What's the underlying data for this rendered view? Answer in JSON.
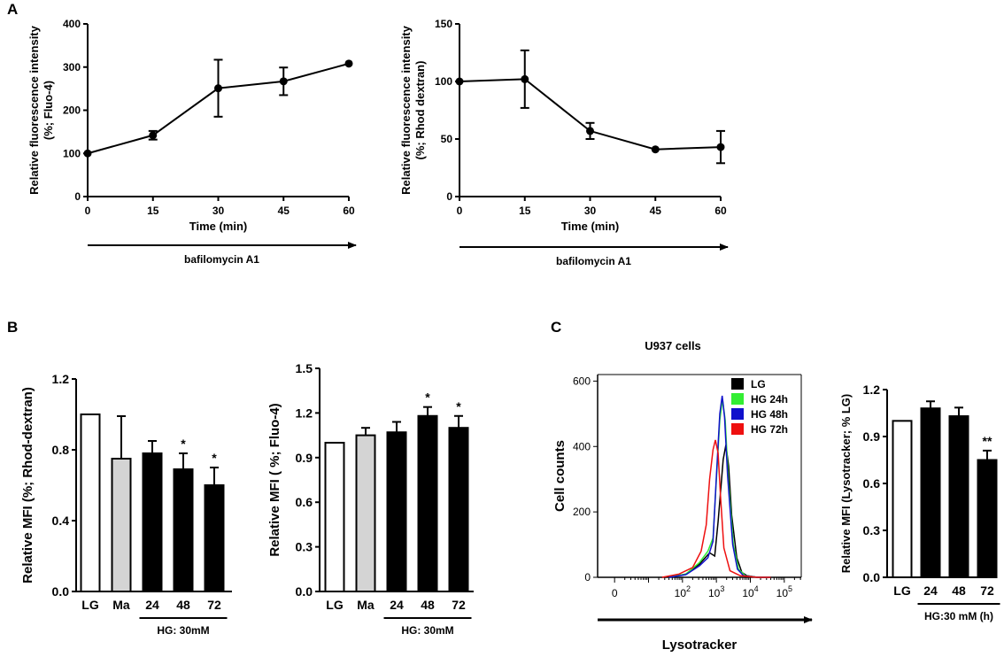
{
  "panels": {
    "a": "A",
    "b": "B",
    "c": "C"
  },
  "chart_data": [
    {
      "id": "A1",
      "type": "line",
      "xlabel": "Time (min)",
      "ylabel_lines": [
        "Relative fluorescence intensity",
        "(%; Fluo-4)"
      ],
      "x": [
        0,
        15,
        30,
        45,
        60
      ],
      "y": [
        100,
        142,
        251,
        267,
        308
      ],
      "err": [
        0,
        10,
        66,
        32,
        0
      ],
      "xticks": [
        "0",
        "15",
        "30",
        "45",
        "60"
      ],
      "yticks": [
        "0",
        "100",
        "200",
        "300",
        "400"
      ],
      "xlim": [
        0,
        60
      ],
      "ylim": [
        0,
        400
      ],
      "arrow_label": "bafilomycin A1"
    },
    {
      "id": "A2",
      "type": "line",
      "xlabel": "Time (min)",
      "ylabel_lines": [
        "Relative fluorescence intensity",
        "(%; Rhod dextran)"
      ],
      "x": [
        0,
        15,
        30,
        45,
        60
      ],
      "y": [
        100,
        102,
        57,
        41,
        43
      ],
      "err": [
        0,
        25,
        7,
        0,
        14
      ],
      "xticks": [
        "0",
        "15",
        "30",
        "45",
        "60"
      ],
      "yticks": [
        "0",
        "50",
        "100",
        "150"
      ],
      "xlim": [
        0,
        60
      ],
      "ylim": [
        0,
        150
      ],
      "arrow_label": "bafilomycin A1"
    },
    {
      "id": "B1",
      "type": "bar",
      "ylabel": "Relative MFI (%; Rhod-dextran)",
      "categories": [
        "LG",
        "Ma",
        "24",
        "48",
        "72"
      ],
      "values": [
        1.0,
        0.75,
        0.78,
        0.69,
        0.6
      ],
      "err": [
        0,
        0.24,
        0.07,
        0.09,
        0.1
      ],
      "sig": [
        "",
        "",
        "",
        "*",
        "*"
      ],
      "fills": [
        "#ffffff",
        "#d4d4d4",
        "#000000",
        "#000000",
        "#000000"
      ],
      "yticks": [
        "0.0",
        "0.4",
        "0.8",
        "1.2"
      ],
      "ylim": [
        0,
        1.2
      ],
      "group_label": "HG: 30mM"
    },
    {
      "id": "B2",
      "type": "bar",
      "ylabel": "Relative MFI ( %; Fluo-4)",
      "categories": [
        "LG",
        "Ma",
        "24",
        "48",
        "72"
      ],
      "values": [
        1.0,
        1.05,
        1.07,
        1.18,
        1.1
      ],
      "err": [
        0,
        0.05,
        0.07,
        0.06,
        0.08
      ],
      "sig": [
        "",
        "",
        "",
        "*",
        "*"
      ],
      "fills": [
        "#ffffff",
        "#d4d4d4",
        "#000000",
        "#000000",
        "#000000"
      ],
      "yticks": [
        "0.0",
        "0.3",
        "0.6",
        "0.9",
        "1.2",
        "1.5"
      ],
      "ylim": [
        0,
        1.5
      ],
      "group_label": "HG: 30mM"
    },
    {
      "id": "C1",
      "type": "area",
      "title": "U937 cells",
      "xlabel": "Lysotracker",
      "ylabel": "Cell counts",
      "log_axis": true,
      "xticks": [
        {
          "pos": 0,
          "base": "0",
          "exp": ""
        },
        {
          "pos": 2,
          "base": "10",
          "exp": "2"
        },
        {
          "pos": 3,
          "base": "10",
          "exp": "3"
        },
        {
          "pos": 4,
          "base": "10",
          "exp": "4"
        },
        {
          "pos": 5,
          "base": "10",
          "exp": "5"
        }
      ],
      "yticks": [
        "0",
        "200",
        "400",
        "600"
      ],
      "xlim": [
        -0.5,
        5.5
      ],
      "ylim": [
        0,
        620
      ],
      "legend": [
        {
          "name": "LG",
          "color": "#000000"
        },
        {
          "name": "HG 24h",
          "color": "#33ee33"
        },
        {
          "name": "HG 48h",
          "color": "#1010cc"
        },
        {
          "name": "HG 72h",
          "color": "#ee1010"
        }
      ],
      "series": [
        {
          "name": "LG",
          "color": "#000000",
          "x": [
            1.6,
            2.1,
            2.5,
            2.8,
            2.95,
            3.05,
            3.2,
            3.28,
            3.36,
            3.45,
            3.6,
            3.75,
            3.9,
            4.2,
            4.6
          ],
          "y": [
            0,
            10,
            40,
            75,
            65,
            170,
            360,
            405,
            340,
            190,
            60,
            15,
            5,
            0,
            0
          ]
        },
        {
          "name": "HG 24h",
          "color": "#33ee33",
          "x": [
            1.6,
            2.1,
            2.5,
            2.75,
            2.9,
            3.0,
            3.1,
            3.18,
            3.26,
            3.35,
            3.5,
            3.65,
            3.85,
            4.2,
            4.6
          ],
          "y": [
            0,
            10,
            45,
            80,
            120,
            300,
            480,
            545,
            480,
            300,
            100,
            25,
            5,
            0,
            0
          ]
        },
        {
          "name": "HG 48h",
          "color": "#1010cc",
          "x": [
            1.6,
            2.1,
            2.5,
            2.75,
            2.9,
            3.0,
            3.1,
            3.17,
            3.24,
            3.33,
            3.48,
            3.62,
            3.8,
            4.2,
            4.6
          ],
          "y": [
            0,
            8,
            35,
            60,
            110,
            310,
            500,
            555,
            490,
            310,
            100,
            25,
            5,
            0,
            0
          ]
        },
        {
          "name": "HG 72h",
          "color": "#ee1010",
          "x": [
            1.4,
            1.9,
            2.3,
            2.55,
            2.7,
            2.8,
            2.9,
            2.97,
            3.05,
            3.12,
            3.22,
            3.4,
            3.7,
            4.2,
            4.6
          ],
          "y": [
            0,
            10,
            30,
            80,
            160,
            300,
            390,
            420,
            380,
            250,
            90,
            20,
            5,
            0,
            0
          ]
        }
      ]
    },
    {
      "id": "C2",
      "type": "bar",
      "ylabel": "Relative MFI (Lysotracker; % LG)",
      "categories": [
        "LG",
        "24",
        "48",
        "72"
      ],
      "values": [
        1.0,
        1.08,
        1.03,
        0.75
      ],
      "err": [
        0,
        0.045,
        0.055,
        0.06
      ],
      "sig": [
        "",
        "",
        "",
        "**"
      ],
      "fills": [
        "#ffffff",
        "#000000",
        "#000000",
        "#000000"
      ],
      "yticks": [
        "0.0",
        "0.3",
        "0.6",
        "0.9",
        "1.2"
      ],
      "ylim": [
        0,
        1.2
      ],
      "group_label": "HG:30 mM (h)"
    }
  ]
}
